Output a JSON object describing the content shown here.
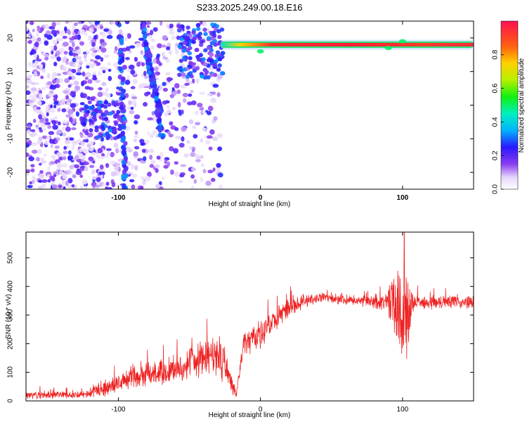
{
  "title": "S233.2025.249.00.18.E16",
  "colors": {
    "snr_line": "#ee2222",
    "axis": "#000000",
    "spectrogram_low": "#7a3ce0",
    "spectrogram_high": "#e8224a"
  },
  "chart_data": [
    {
      "type": "heatmap",
      "name": "spectrogram",
      "title": "S233.2025.249.00.18.E16",
      "xlabel": "Height of straight line (km)",
      "ylabel": "Frequency (Hz)",
      "xlim": [
        -165,
        150
      ],
      "ylim": [
        -25,
        25
      ],
      "xticks": [
        {
          "value": -100,
          "label": "-100"
        },
        {
          "value": 0,
          "label": "0"
        },
        {
          "value": 100,
          "label": "100"
        }
      ],
      "yticks": [
        {
          "value": -20,
          "label": "-20"
        },
        {
          "value": -10,
          "label": "-10"
        },
        {
          "value": 0,
          "label": "0"
        },
        {
          "value": 10,
          "label": "10"
        },
        {
          "value": 20,
          "label": "20"
        }
      ],
      "colorbar": {
        "label": "Normalized spectral amplitude",
        "range": [
          0,
          1
        ],
        "ticks": [
          {
            "value": 0.0,
            "label": "0.0"
          },
          {
            "value": 0.2,
            "label": "0.2"
          },
          {
            "value": 0.4,
            "label": "0.4"
          },
          {
            "value": 0.6,
            "label": "0.6"
          },
          {
            "value": 0.8,
            "label": "0.8"
          }
        ]
      },
      "features": [
        {
          "name": "dominant tone",
          "x_range": [
            -28,
            150
          ],
          "frequency": 18,
          "amplitude": 0.9
        },
        {
          "name": "descending streak 1",
          "x_range": [
            [
              -99,
              25
            ],
            [
              -95,
              -25
            ]
          ],
          "amplitude": 0.3
        },
        {
          "name": "descending streak 2",
          "x_range": [
            [
              -83,
              25
            ],
            [
              -69,
              -10
            ]
          ],
          "amplitude": 0.3
        },
        {
          "name": "scattered noise",
          "x_range": [
            -165,
            -28
          ],
          "amplitude": 0.15
        }
      ]
    },
    {
      "type": "line",
      "name": "snr",
      "xlabel": "Height of straight line (km)",
      "ylabel": "SNR (10 * v/v)",
      "xlim": [
        -165,
        150
      ],
      "ylim": [
        0,
        590
      ],
      "xticks": [
        {
          "value": -100,
          "label": "-100"
        },
        {
          "value": 0,
          "label": "0"
        },
        {
          "value": 100,
          "label": "100"
        }
      ],
      "yticks": [
        {
          "value": 0,
          "label": "0"
        },
        {
          "value": 100,
          "label": "100"
        },
        {
          "value": 200,
          "label": "200"
        },
        {
          "value": 300,
          "label": "300"
        },
        {
          "value": 400,
          "label": "400"
        },
        {
          "value": 500,
          "label": "500"
        }
      ],
      "envelope": [
        {
          "x": -165,
          "y": 20,
          "noise": 15
        },
        {
          "x": -125,
          "y": 22,
          "noise": 15
        },
        {
          "x": -110,
          "y": 45,
          "noise": 35
        },
        {
          "x": -90,
          "y": 80,
          "noise": 50
        },
        {
          "x": -60,
          "y": 110,
          "noise": 55
        },
        {
          "x": -40,
          "y": 150,
          "noise": 70
        },
        {
          "x": -28,
          "y": 160,
          "noise": 100
        },
        {
          "x": -17,
          "y": 20,
          "noise": 15
        },
        {
          "x": -12,
          "y": 200,
          "noise": 50
        },
        {
          "x": 0,
          "y": 235,
          "noise": 55
        },
        {
          "x": 20,
          "y": 330,
          "noise": 40
        },
        {
          "x": 40,
          "y": 360,
          "noise": 20
        },
        {
          "x": 70,
          "y": 350,
          "noise": 20
        },
        {
          "x": 88,
          "y": 345,
          "noise": 40
        },
        {
          "x": 96,
          "y": 330,
          "noise": 150
        },
        {
          "x": 103,
          "y": 300,
          "noise": 230
        },
        {
          "x": 108,
          "y": 345,
          "noise": 30
        },
        {
          "x": 150,
          "y": 345,
          "noise": 25
        }
      ]
    }
  ]
}
